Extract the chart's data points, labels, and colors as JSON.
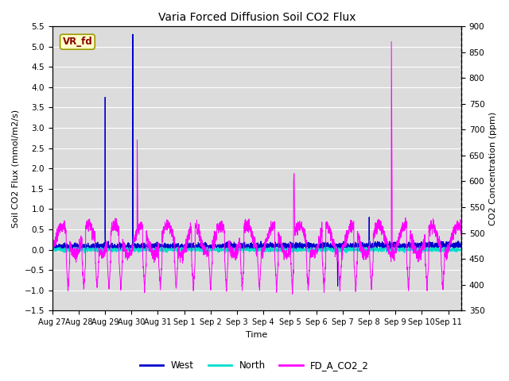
{
  "title": "Varia Forced Diffusion Soil CO2 Flux",
  "xlabel": "Time",
  "ylabel_left": "Soil CO2 Flux (mmol/m2/s)",
  "ylabel_right": "CO2 Concentration (ppm)",
  "ylim_left": [
    -1.5,
    5.5
  ],
  "ylim_right": [
    350,
    900
  ],
  "annotation_text": "VR_fd",
  "legend_labels": [
    "West",
    "North",
    "FD_A_CO2_2"
  ],
  "colors": {
    "West": "#0000cc",
    "North": "#00ddcc",
    "FD_A_CO2_2": "#ff00ff"
  },
  "bg_color": "#dcdcdc",
  "grid_color": "#ffffff",
  "n_points": 3000,
  "total_days": 15.5,
  "yticks_left": [
    -1.5,
    -1.0,
    -0.5,
    0.0,
    0.5,
    1.0,
    1.5,
    2.0,
    2.5,
    3.0,
    3.5,
    4.0,
    4.5,
    5.0,
    5.5
  ],
  "yticks_right": [
    350,
    400,
    450,
    500,
    550,
    600,
    650,
    700,
    750,
    800,
    850,
    900
  ],
  "tick_labels": [
    "Aug 27",
    "Aug 28",
    "Aug 29",
    "Aug 30",
    "Aug 31",
    "Sep 1",
    "Sep 2",
    "Sep 3",
    "Sep 4",
    "Sep 5",
    "Sep 6",
    "Sep 7",
    "Sep 8",
    "Sep 9",
    "Sep 10",
    "Sep 11"
  ]
}
